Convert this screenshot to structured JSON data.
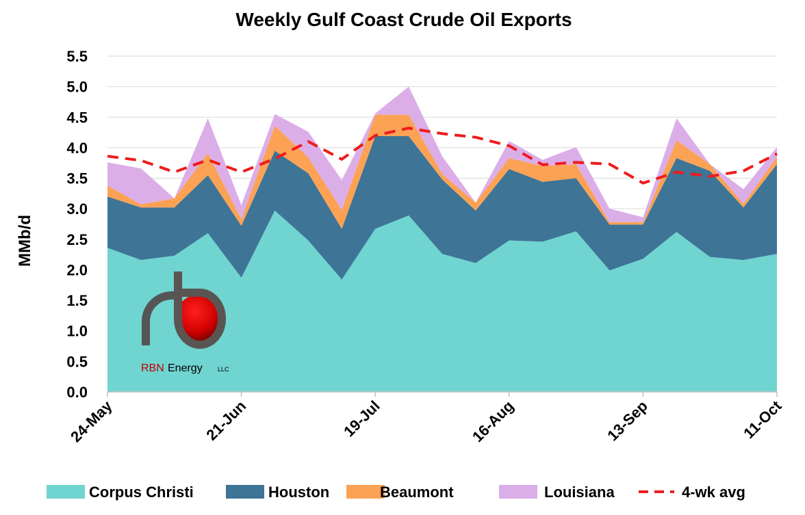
{
  "chart_data": {
    "type": "area",
    "stacked": true,
    "title": "Weekly Gulf Coast Crude Oil Exports",
    "xlabel": "",
    "ylabel": "MMb/d",
    "ylim": [
      0,
      5.5
    ],
    "yticks": [
      "0.0",
      "0.5",
      "1.0",
      "1.5",
      "2.0",
      "2.5",
      "3.0",
      "3.5",
      "4.0",
      "4.5",
      "5.0",
      "5.5"
    ],
    "grid": true,
    "legend": "bottom",
    "x": [
      "24-May",
      "31-May",
      "7-Jun",
      "14-Jun",
      "21-Jun",
      "28-Jun",
      "5-Jul",
      "12-Jul",
      "19-Jul",
      "26-Jul",
      "2-Aug",
      "9-Aug",
      "16-Aug",
      "23-Aug",
      "30-Aug",
      "6-Sep",
      "13-Sep",
      "20-Sep",
      "27-Sep",
      "4-Oct",
      "11-Oct"
    ],
    "xticks": [
      "24-May",
      "21-Jun",
      "19-Jul",
      "16-Aug",
      "13-Sep",
      "11-Oct"
    ],
    "series": [
      {
        "name": "Corpus Christi",
        "color": "#70d4d0",
        "values": [
          2.36,
          2.16,
          2.23,
          2.6,
          1.87,
          2.97,
          2.48,
          1.84,
          2.67,
          2.89,
          2.26,
          2.11,
          2.48,
          2.46,
          2.63,
          1.99,
          2.18,
          2.62,
          2.21,
          2.16,
          2.26
        ]
      },
      {
        "name": "Houston",
        "color": "#3e7496",
        "values": [
          0.84,
          0.86,
          0.79,
          0.95,
          0.85,
          0.98,
          1.1,
          0.83,
          1.52,
          1.3,
          1.22,
          0.86,
          1.17,
          0.98,
          0.87,
          0.75,
          0.56,
          1.21,
          1.41,
          0.86,
          1.47
        ]
      },
      {
        "name": "Beaumont",
        "color": "#fba254",
        "values": [
          0.18,
          0.05,
          0.15,
          0.36,
          0.11,
          0.41,
          0.26,
          0.31,
          0.35,
          0.35,
          0.09,
          0.13,
          0.18,
          0.26,
          0.23,
          0.04,
          0.04,
          0.29,
          0.11,
          0.06,
          0.12
        ]
      },
      {
        "name": "Louisiana",
        "color": "#dcaee8",
        "values": [
          0.38,
          0.59,
          0.0,
          0.57,
          0.23,
          0.19,
          0.42,
          0.49,
          0.02,
          0.46,
          0.29,
          0.0,
          0.28,
          0.1,
          0.28,
          0.22,
          0.08,
          0.36,
          0.0,
          0.24,
          0.16
        ]
      }
    ],
    "line": {
      "name": "4-wk avg",
      "color": "#ee1c1c",
      "style": "dashed",
      "values": [
        3.86,
        3.79,
        3.6,
        3.8,
        3.6,
        3.82,
        4.1,
        3.81,
        4.2,
        4.32,
        4.23,
        4.17,
        4.03,
        3.72,
        3.76,
        3.73,
        3.42,
        3.6,
        3.53,
        3.62,
        3.9
      ]
    }
  },
  "logo": {
    "text_1": "RBN",
    "text_2": "Energy",
    "text_3": "LLC"
  }
}
